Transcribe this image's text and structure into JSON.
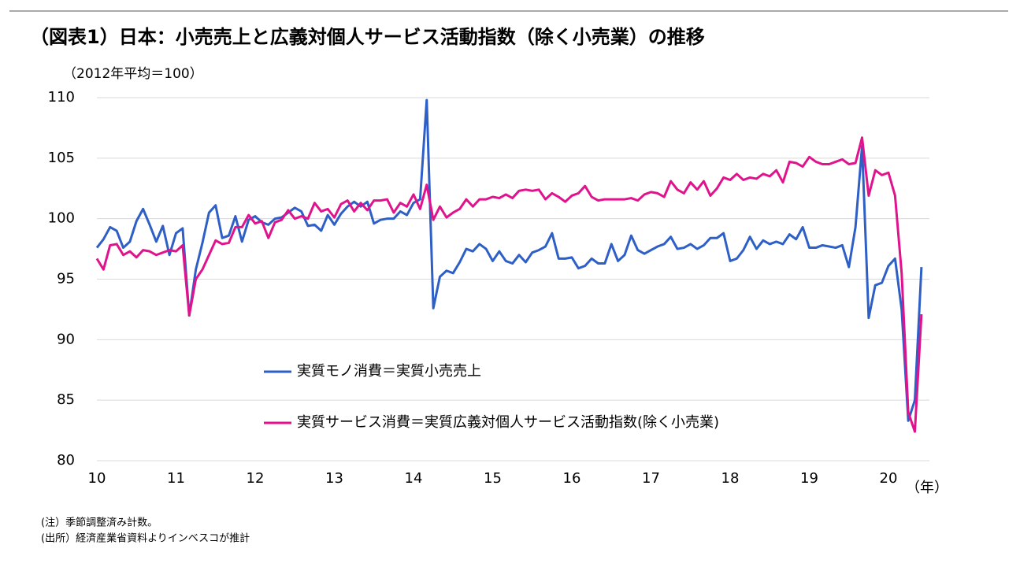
{
  "chart_data": {
    "type": "line",
    "title": "（図表1）日本：小売売上と広義対個人サービス活動指数（除く小売業）の推移",
    "subtitle": "（2012年平均＝100）",
    "x_label": "（年）",
    "categories": [
      "10",
      null,
      null,
      null,
      null,
      null,
      null,
      null,
      null,
      null,
      null,
      null,
      "11",
      null,
      null,
      null,
      null,
      null,
      null,
      null,
      null,
      null,
      null,
      null,
      "12",
      null,
      null,
      null,
      null,
      null,
      null,
      null,
      null,
      null,
      null,
      null,
      "13",
      null,
      null,
      null,
      null,
      null,
      null,
      null,
      null,
      null,
      null,
      null,
      "14",
      null,
      null,
      null,
      null,
      null,
      null,
      null,
      null,
      null,
      null,
      null,
      "15",
      null,
      null,
      null,
      null,
      null,
      null,
      null,
      null,
      null,
      null,
      null,
      "16",
      null,
      null,
      null,
      null,
      null,
      null,
      null,
      null,
      null,
      null,
      null,
      "17",
      null,
      null,
      null,
      null,
      null,
      null,
      null,
      null,
      null,
      null,
      null,
      "18",
      null,
      null,
      null,
      null,
      null,
      null,
      null,
      null,
      null,
      null,
      null,
      "19",
      null,
      null,
      null,
      null,
      null,
      null,
      null,
      null,
      null,
      null,
      null,
      "20",
      null,
      null,
      null,
      null,
      null
    ],
    "series": [
      {
        "name": "実質モノ消費＝実質小売売上",
        "color": "#2d5fc6",
        "values": [
          97.6,
          98.3,
          99.3,
          99.0,
          97.6,
          98.1,
          99.8,
          100.8,
          99.5,
          98.1,
          99.4,
          97.0,
          98.8,
          99.2,
          92.0,
          95.8,
          98.0,
          100.5,
          101.1,
          98.4,
          98.6,
          100.2,
          98.1,
          99.9,
          100.2,
          99.7,
          99.5,
          100.0,
          100.1,
          100.5,
          100.9,
          100.6,
          99.4,
          99.5,
          99.0,
          100.3,
          99.5,
          100.4,
          101.0,
          101.4,
          101.0,
          101.4,
          99.6,
          99.9,
          100.0,
          100.0,
          100.6,
          100.3,
          101.3,
          101.6,
          109.8,
          92.6,
          95.2,
          95.7,
          95.5,
          96.4,
          97.5,
          97.3,
          97.9,
          97.5,
          96.5,
          97.3,
          96.5,
          96.3,
          97.0,
          96.4,
          97.2,
          97.4,
          97.7,
          98.8,
          96.7,
          96.7,
          96.8,
          95.9,
          96.1,
          96.7,
          96.3,
          96.3,
          97.9,
          96.5,
          97.0,
          98.6,
          97.4,
          97.1,
          97.4,
          97.7,
          97.9,
          98.5,
          97.5,
          97.6,
          97.9,
          97.5,
          97.8,
          98.4,
          98.4,
          98.8,
          96.5,
          96.7,
          97.4,
          98.5,
          97.5,
          98.2,
          97.9,
          98.1,
          97.9,
          98.7,
          98.3,
          99.3,
          97.6,
          97.6,
          97.8,
          97.7,
          97.6,
          97.8,
          96.0,
          99.3,
          106.0,
          91.8,
          94.5,
          94.7,
          96.1,
          96.7,
          92.5,
          83.3,
          85.0,
          96.0
        ]
      },
      {
        "name": "実質サービス消費＝実質広義対個人サービス活動指数(除く小売業)",
        "color": "#e0138c",
        "values": [
          96.7,
          95.8,
          97.8,
          97.9,
          97.0,
          97.3,
          96.8,
          97.4,
          97.3,
          97.0,
          97.2,
          97.4,
          97.3,
          97.8,
          92.0,
          95.0,
          95.8,
          97.0,
          98.2,
          97.9,
          98.0,
          99.3,
          99.3,
          100.3,
          99.6,
          99.8,
          98.4,
          99.7,
          99.9,
          100.7,
          100.0,
          100.2,
          100.0,
          101.3,
          100.6,
          100.8,
          100.1,
          101.2,
          101.5,
          100.6,
          101.3,
          100.7,
          101.5,
          101.5,
          101.6,
          100.5,
          101.3,
          101.0,
          102.0,
          100.8,
          102.8,
          99.9,
          101.0,
          100.1,
          100.5,
          100.8,
          101.6,
          101.0,
          101.6,
          101.6,
          101.8,
          101.7,
          102.0,
          101.7,
          102.3,
          102.4,
          102.3,
          102.4,
          101.6,
          102.1,
          101.8,
          101.4,
          101.9,
          102.1,
          102.7,
          101.8,
          101.5,
          101.6,
          101.6,
          101.6,
          101.6,
          101.7,
          101.5,
          102.0,
          102.2,
          102.1,
          101.8,
          103.1,
          102.4,
          102.1,
          103.0,
          102.4,
          103.1,
          101.9,
          102.5,
          103.4,
          103.2,
          103.7,
          103.2,
          103.4,
          103.3,
          103.7,
          103.5,
          104.0,
          103.0,
          104.7,
          104.6,
          104.3,
          105.1,
          104.7,
          104.5,
          104.5,
          104.7,
          104.9,
          104.5,
          104.6,
          106.7,
          101.9,
          104.0,
          103.6,
          103.8,
          101.9,
          95.5,
          84.0,
          82.4,
          92.1
        ]
      }
    ],
    "ylim": [
      80,
      110
    ],
    "yticks": [
      80,
      85,
      90,
      95,
      100,
      105,
      110
    ],
    "grid": true,
    "notes": [
      "(注）季節調整済み計数。",
      "(出所）経済産業省資料よりインベスコが推計"
    ]
  }
}
